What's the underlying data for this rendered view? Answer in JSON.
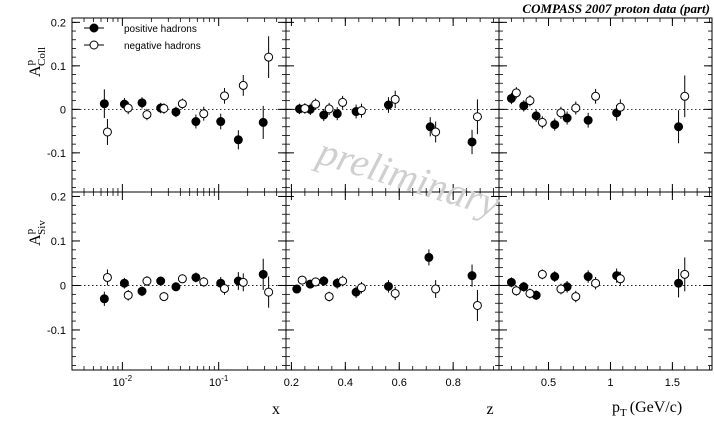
{
  "chart_data": {
    "type": "scatter",
    "title": "COMPASS 2007 proton data (part)",
    "watermark": "preliminary",
    "legend": {
      "placement": "top-left",
      "entries": [
        "positive hadrons",
        "negative hadrons"
      ]
    },
    "ylabels": {
      "coll": {
        "base": "A",
        "sup": "p",
        "sub": "Coll"
      },
      "siv": {
        "base": "A",
        "sup": "p",
        "sub": "Siv"
      }
    },
    "ylim": [
      -0.19,
      0.21
    ],
    "ytick_labels": [
      "0.2",
      "0.1",
      "0",
      "-0.1"
    ],
    "ytick_values": [
      0.2,
      0.1,
      0,
      -0.1
    ],
    "xlabels": {
      "x": "x",
      "z": "z",
      "pt": {
        "base": "p",
        "sub": "T",
        "unit": "(GeV/c)"
      }
    },
    "x_axes": {
      "x": {
        "scale": "log",
        "range": [
          0.003,
          0.5
        ],
        "tick_labels": [
          "10",
          "10"
        ],
        "tick_exps": [
          "-2",
          "-1"
        ],
        "tick_values": [
          0.01,
          0.1
        ]
      },
      "z": {
        "scale": "linear",
        "range": [
          0.18,
          0.97
        ],
        "tick_labels": [
          "0.2",
          "0.4",
          "0.6",
          "0.8"
        ],
        "tick_values": [
          0.2,
          0.4,
          0.6,
          0.8
        ]
      },
      "pt": {
        "scale": "linear",
        "range": [
          0.1,
          1.82
        ],
        "tick_labels": [
          "0.5",
          "1",
          "1.5"
        ],
        "tick_values": [
          0.5,
          1.0,
          1.5
        ]
      }
    },
    "panels": [
      {
        "row": "coll",
        "col": "x",
        "series": [
          {
            "name": "positive hadrons",
            "x": [
              0.0065,
              0.0105,
              0.016,
              0.025,
              0.036,
              0.058,
              0.105,
              0.16,
              0.29
            ],
            "y": [
              0.013,
              0.012,
              0.015,
              0.003,
              -0.006,
              -0.028,
              -0.028,
              -0.07,
              -0.03
            ],
            "err": [
              0.033,
              0.014,
              0.013,
              0.012,
              0.012,
              0.016,
              0.018,
              0.022,
              0.038
            ]
          },
          {
            "name": "negative hadrons",
            "x": [
              0.007,
              0.0115,
              0.018,
              0.027,
              0.042,
              0.07,
              0.115,
              0.18,
              0.33
            ],
            "y": [
              -0.052,
              0.003,
              -0.012,
              0.002,
              0.013,
              -0.01,
              0.031,
              0.055,
              0.12
            ],
            "err": [
              0.03,
              0.014,
              0.013,
              0.012,
              0.012,
              0.016,
              0.018,
              0.024,
              0.048
            ]
          }
        ]
      },
      {
        "row": "coll",
        "col": "z",
        "series": [
          {
            "name": "positive hadrons",
            "x": [
              0.23,
              0.27,
              0.32,
              0.37,
              0.44,
              0.56,
              0.715,
              0.87
            ],
            "y": [
              0.001,
              0.0,
              -0.013,
              -0.01,
              -0.005,
              0.01,
              -0.04,
              -0.075
            ],
            "err": [
              0.012,
              0.013,
              0.014,
              0.015,
              0.016,
              0.018,
              0.022,
              0.028
            ]
          },
          {
            "name": "negative hadrons",
            "x": [
              0.25,
              0.29,
              0.34,
              0.39,
              0.46,
              0.585,
              0.735,
              0.89
            ],
            "y": [
              0.002,
              0.012,
              0.001,
              0.016,
              -0.003,
              0.023,
              -0.052,
              -0.017
            ],
            "err": [
              0.012,
              0.013,
              0.014,
              0.015,
              0.016,
              0.02,
              0.024,
              0.04
            ]
          }
        ]
      },
      {
        "row": "coll",
        "col": "pt",
        "series": [
          {
            "name": "positive hadrons",
            "x": [
              0.2,
              0.3,
              0.4,
              0.55,
              0.65,
              0.82,
              1.05,
              1.55
            ],
            "y": [
              0.025,
              0.008,
              -0.015,
              -0.035,
              -0.02,
              -0.025,
              -0.008,
              -0.04
            ],
            "err": [
              0.013,
              0.013,
              0.014,
              0.014,
              0.015,
              0.017,
              0.018,
              0.038
            ]
          },
          {
            "name": "negative hadrons",
            "x": [
              0.24,
              0.35,
              0.45,
              0.6,
              0.72,
              0.88,
              1.08,
              1.6
            ],
            "y": [
              0.038,
              0.02,
              -0.03,
              -0.008,
              0.003,
              0.03,
              0.005,
              0.03
            ],
            "err": [
              0.013,
              0.013,
              0.014,
              0.014,
              0.015,
              0.017,
              0.018,
              0.048
            ]
          }
        ]
      },
      {
        "row": "siv",
        "col": "x",
        "series": [
          {
            "name": "positive hadrons",
            "x": [
              0.0065,
              0.0105,
              0.016,
              0.025,
              0.036,
              0.058,
              0.105,
              0.16,
              0.29
            ],
            "y": [
              -0.03,
              0.005,
              -0.013,
              0.01,
              -0.003,
              0.018,
              0.005,
              0.01,
              0.025
            ],
            "err": [
              0.016,
              0.012,
              0.011,
              0.01,
              0.01,
              0.011,
              0.014,
              0.02,
              0.035
            ]
          },
          {
            "name": "negative hadrons",
            "x": [
              0.007,
              0.0115,
              0.018,
              0.027,
              0.042,
              0.07,
              0.115,
              0.18,
              0.33
            ],
            "y": [
              0.018,
              -0.022,
              0.01,
              -0.025,
              0.015,
              0.008,
              -0.007,
              0.007,
              -0.015
            ],
            "err": [
              0.018,
              0.012,
              0.011,
              0.01,
              0.01,
              0.011,
              0.014,
              0.02,
              0.035
            ]
          }
        ]
      },
      {
        "row": "siv",
        "col": "z",
        "series": [
          {
            "name": "positive hadrons",
            "x": [
              0.22,
              0.27,
              0.32,
              0.37,
              0.44,
              0.56,
              0.71,
              0.87
            ],
            "y": [
              -0.008,
              0.003,
              0.01,
              0.005,
              -0.015,
              -0.002,
              0.063,
              0.022
            ],
            "err": [
              0.01,
              0.01,
              0.011,
              0.012,
              0.013,
              0.014,
              0.018,
              0.025
            ]
          },
          {
            "name": "negative hadrons",
            "x": [
              0.24,
              0.29,
              0.34,
              0.39,
              0.46,
              0.585,
              0.735,
              0.89
            ],
            "y": [
              0.012,
              0.008,
              -0.025,
              0.01,
              -0.005,
              -0.018,
              -0.008,
              -0.045
            ],
            "err": [
              0.01,
              0.01,
              0.011,
              0.012,
              0.013,
              0.015,
              0.02,
              0.035
            ]
          }
        ]
      },
      {
        "row": "siv",
        "col": "pt",
        "series": [
          {
            "name": "positive hadrons",
            "x": [
              0.2,
              0.3,
              0.4,
              0.55,
              0.65,
              0.82,
              1.05,
              1.55
            ],
            "y": [
              0.007,
              -0.003,
              -0.022,
              0.02,
              -0.003,
              0.02,
              0.022,
              0.005
            ],
            "err": [
              0.011,
              0.011,
              0.011,
              0.012,
              0.013,
              0.014,
              0.016,
              0.032
            ]
          },
          {
            "name": "negative hadrons",
            "x": [
              0.24,
              0.35,
              0.45,
              0.6,
              0.72,
              0.88,
              1.08,
              1.6
            ],
            "y": [
              -0.012,
              -0.018,
              0.025,
              -0.008,
              -0.025,
              0.005,
              0.015,
              0.025
            ],
            "err": [
              0.011,
              0.011,
              0.011,
              0.012,
              0.013,
              0.014,
              0.016,
              0.038
            ]
          }
        ]
      }
    ]
  }
}
